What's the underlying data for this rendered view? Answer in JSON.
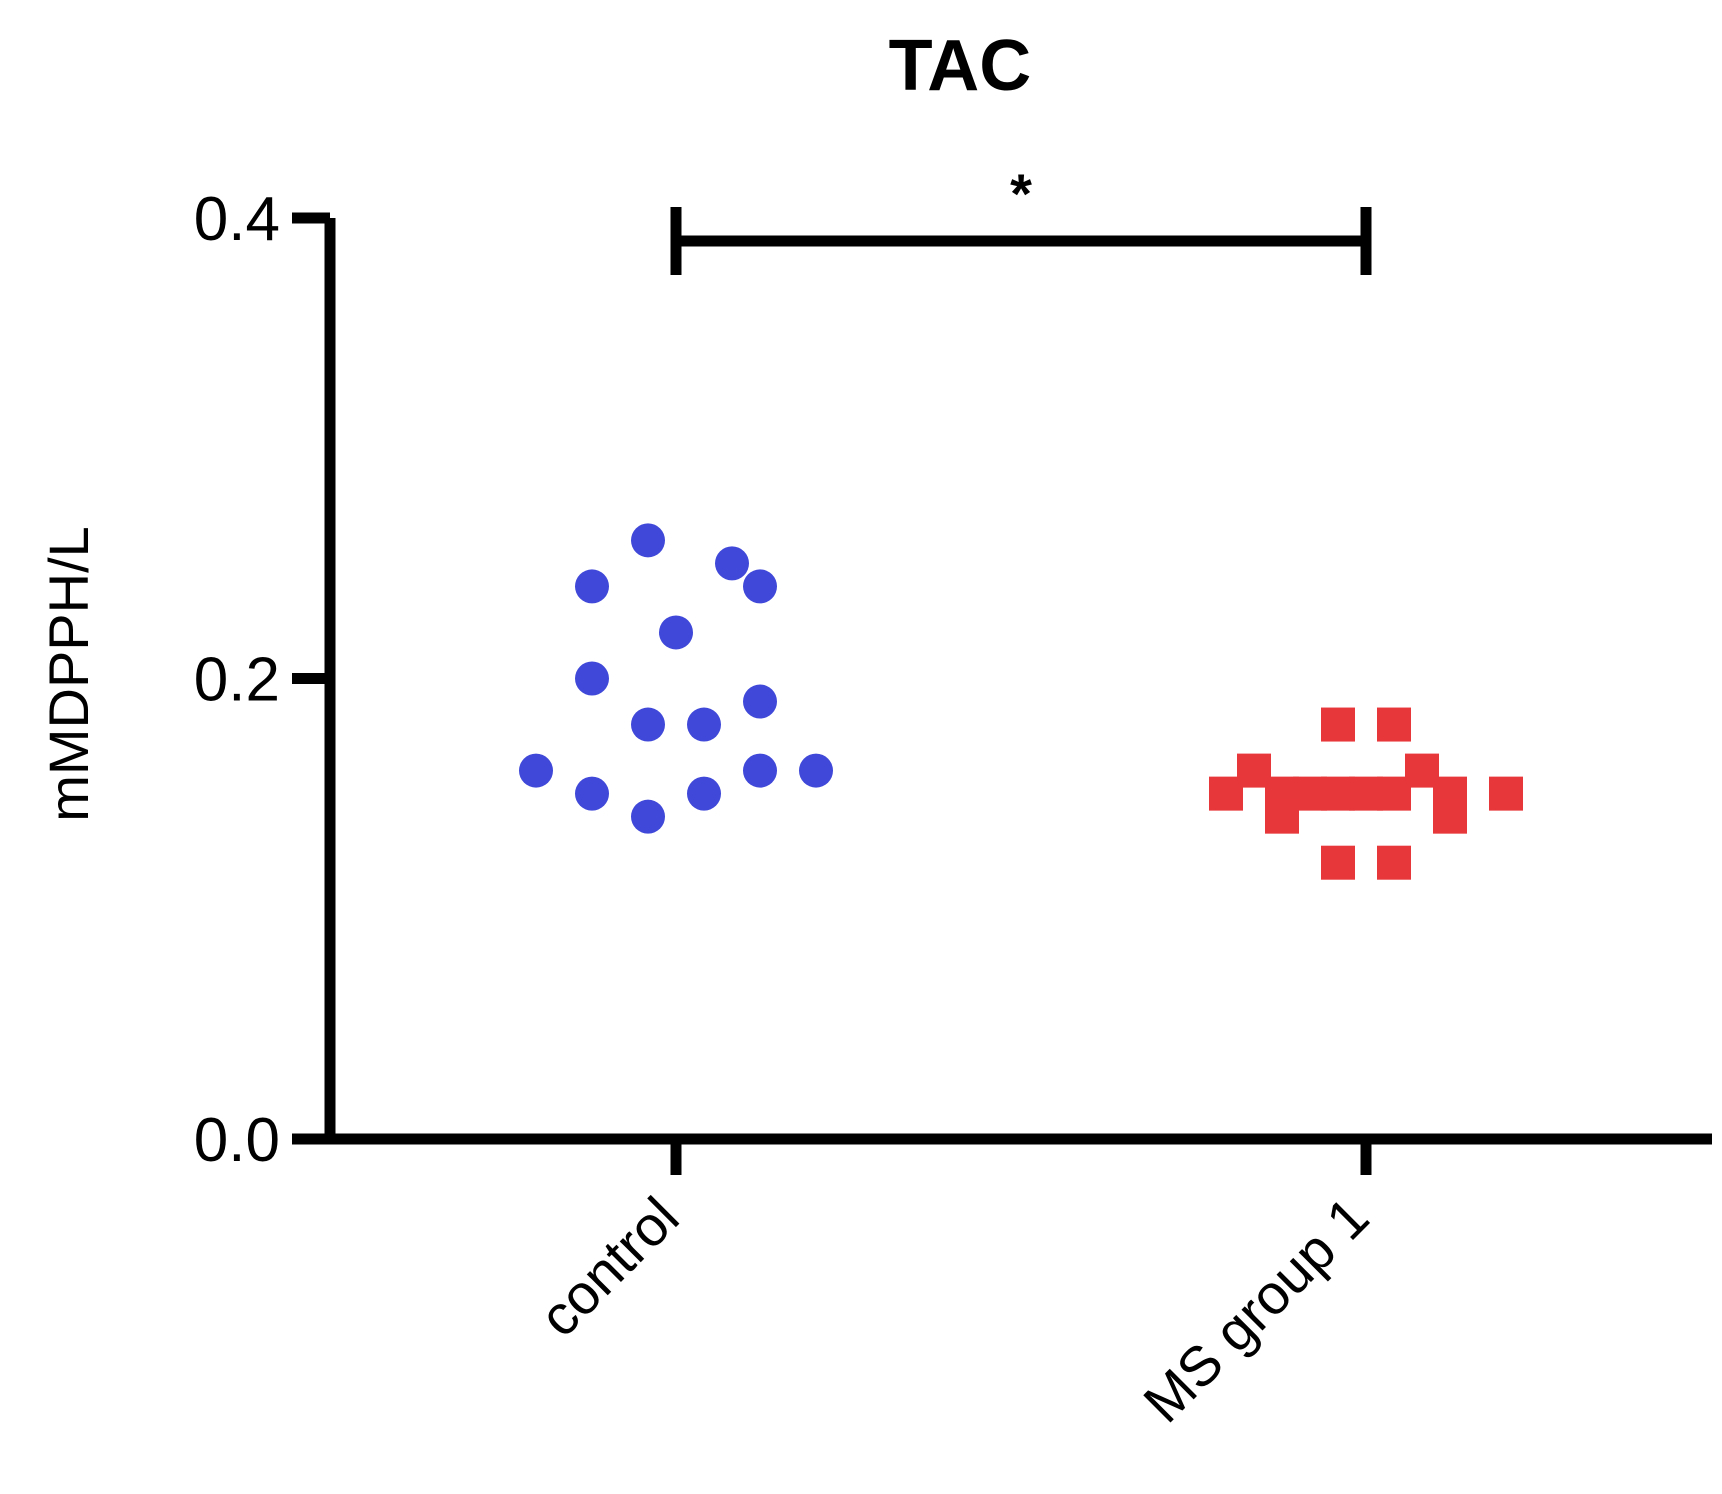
{
  "chart_data": {
    "type": "scatter",
    "title": "TAC",
    "xlabel": "",
    "ylabel": "mMDPPH/L",
    "ylim": [
      0,
      0.4
    ],
    "yticks": [
      {
        "value": 0.0,
        "label": "0.0"
      },
      {
        "value": 0.2,
        "label": "0.2"
      },
      {
        "value": 0.4,
        "label": "0.4"
      }
    ],
    "categories": [
      "control",
      "MS group 1"
    ],
    "grid": false,
    "series": [
      {
        "category": "control",
        "marker": "circle",
        "color": "#3f48d8",
        "values": [
          0.26,
          0.25,
          0.24,
          0.24,
          0.22,
          0.2,
          0.19,
          0.18,
          0.18,
          0.16,
          0.16,
          0.16,
          0.15,
          0.15,
          0.14
        ],
        "offsets": [
          -1,
          2,
          -3,
          3,
          0,
          -3,
          3,
          -1,
          1,
          -5,
          3,
          5,
          -3,
          1,
          -1
        ]
      },
      {
        "category": "MS group 1",
        "marker": "square",
        "color": "#e8373a",
        "values": [
          0.18,
          0.18,
          0.16,
          0.16,
          0.15,
          0.15,
          0.15,
          0.15,
          0.15,
          0.15,
          0.15,
          0.15,
          0.14,
          0.14,
          0.12,
          0.12
        ],
        "offsets": [
          -1,
          1,
          -4,
          2,
          -5,
          -3,
          -2,
          -1,
          0,
          1,
          3,
          5,
          -3,
          3,
          -1,
          1
        ]
      }
    ],
    "annotations": [
      {
        "type": "significance_bracket",
        "from": "control",
        "to": "MS group 1",
        "y": 0.39,
        "label": "*"
      }
    ]
  }
}
